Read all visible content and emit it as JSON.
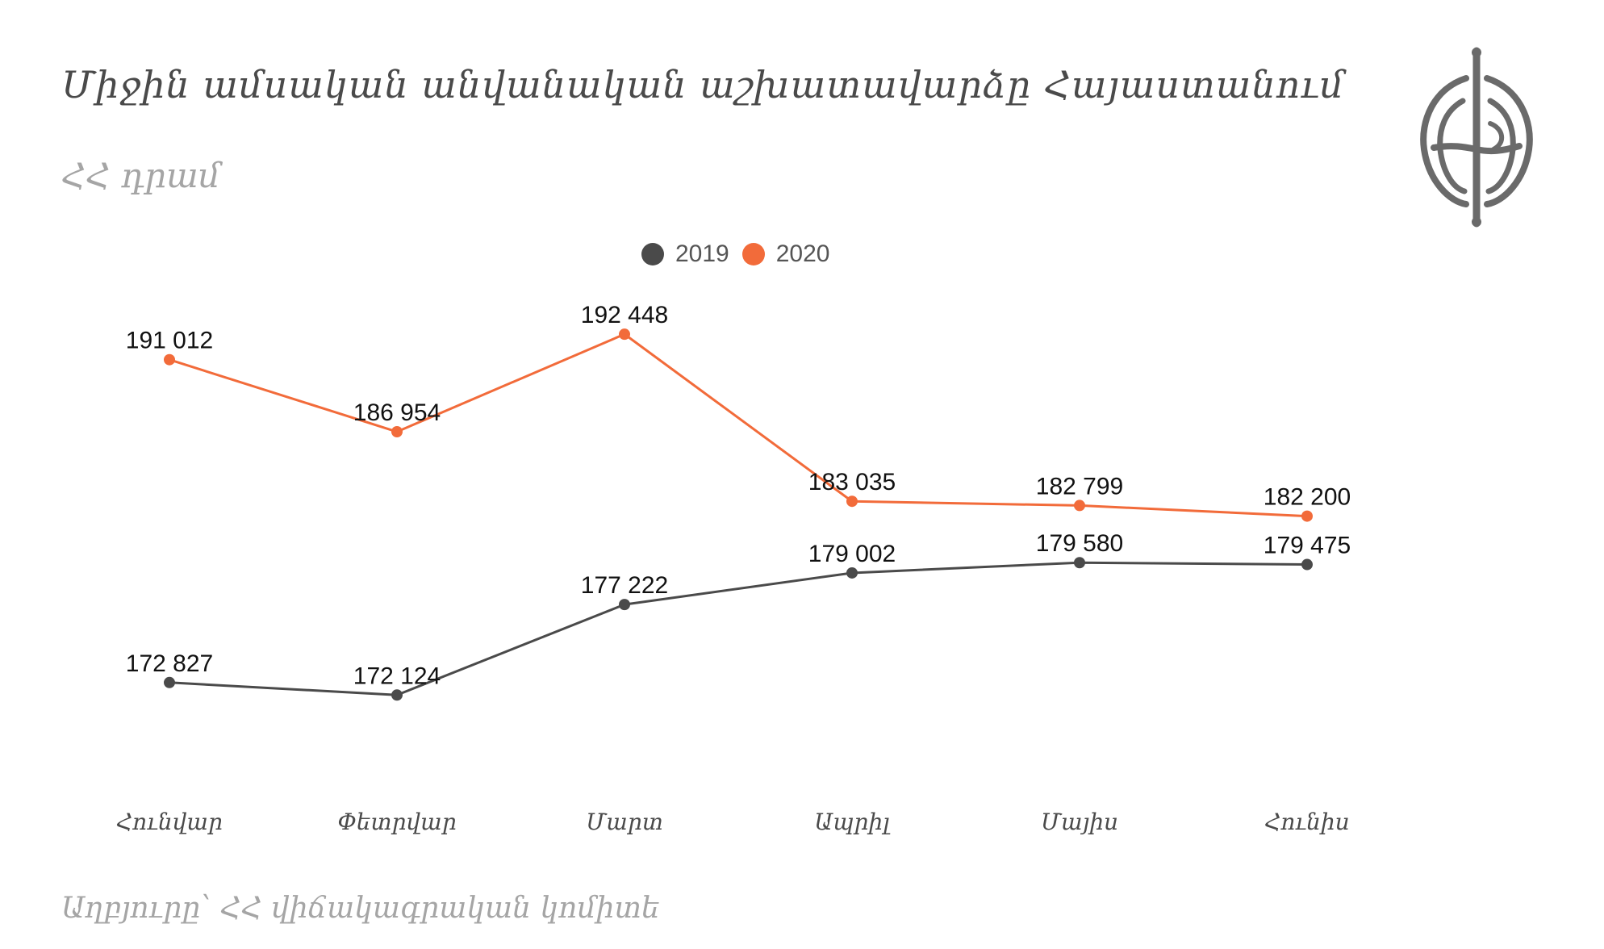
{
  "header": {
    "title": "Միջին ամսական անվանական աշխատավարձը Հայաստանում",
    "subtitle": "ՀՀ դրամ"
  },
  "footer": {
    "source": "Աղբյուրը՝  ՀՀ վիճակագրական կոմիտե"
  },
  "logo": {
    "icon": "globe-cross-logo-icon"
  },
  "colors": {
    "series_2019": "#4a4a4a",
    "series_2020": "#f26b3a"
  },
  "chart_data": {
    "type": "line",
    "categories": [
      "Հունվար",
      "Փետրվար",
      "Մարտ",
      "Ապրիլ",
      "Մայիս",
      "Հունիս"
    ],
    "series": [
      {
        "name": "2019",
        "color": "#4a4a4a",
        "values": [
          172827,
          172124,
          177222,
          179002,
          179580,
          179475
        ],
        "labels": [
          "172 827",
          "172 124",
          "177 222",
          "179 002",
          "179 580",
          "179 475"
        ]
      },
      {
        "name": "2020",
        "color": "#f26b3a",
        "values": [
          191012,
          186954,
          192448,
          183035,
          182799,
          182200
        ],
        "labels": [
          "191 012",
          "186 954",
          "192 448",
          "183 035",
          "182 799",
          "182 200"
        ]
      }
    ],
    "ylim": [
      168000,
      194000
    ],
    "legend_position": "top-center",
    "grid": false
  }
}
